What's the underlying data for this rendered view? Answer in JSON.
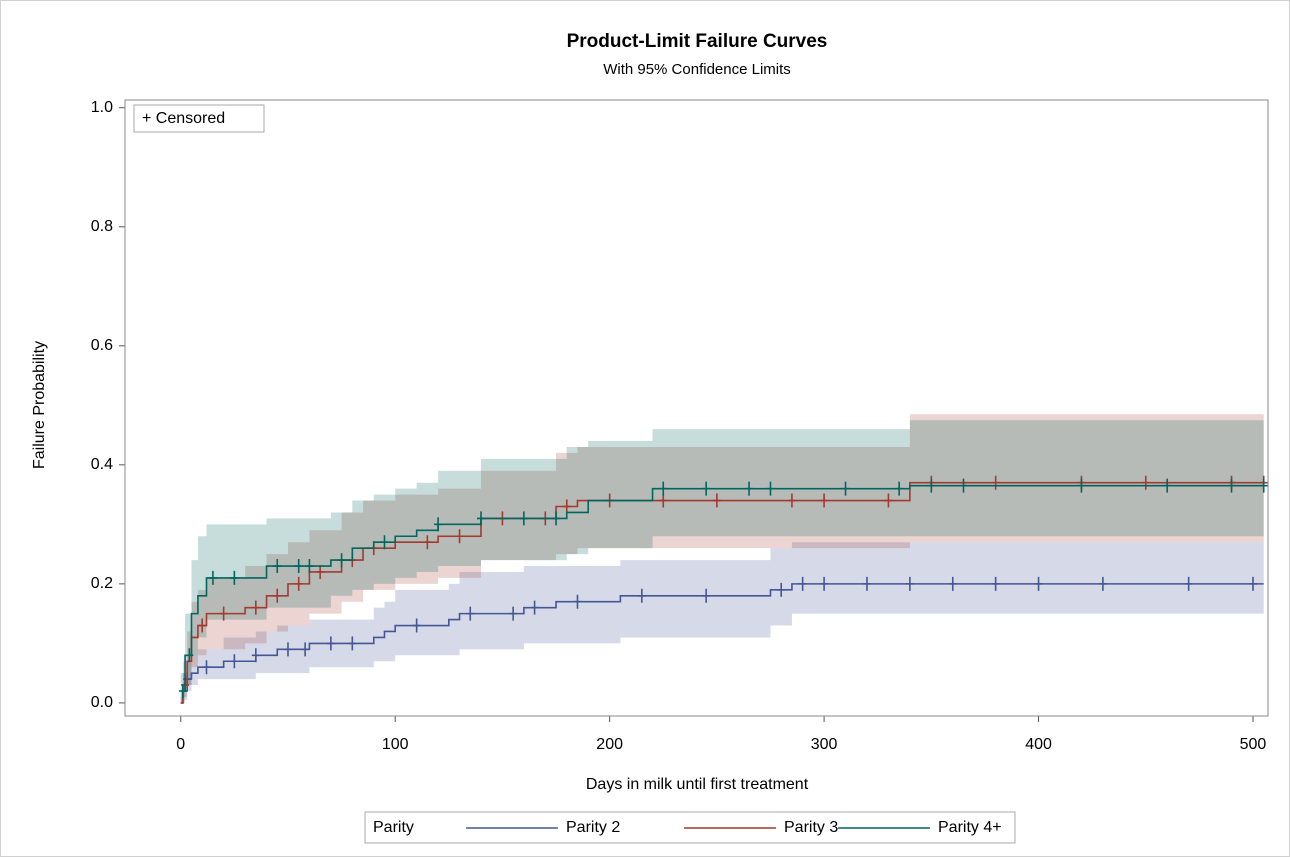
{
  "chart_data": {
    "type": "line",
    "title": "Product-Limit Failure Curves",
    "subtitle": "With 95% Confidence Limits",
    "xlabel": "Days in milk until first treatment",
    "ylabel": "Failure Probability",
    "legend_title": "Parity",
    "censored_label": "+ Censored",
    "xlim": [
      -26,
      507
    ],
    "ylim": [
      -0.022,
      1.013
    ],
    "xticks": [
      0,
      100,
      200,
      300,
      400,
      500
    ],
    "yticks": [
      {
        "value": 0,
        "label": "0.0"
      },
      0.2,
      0.4,
      0.6,
      0.8,
      {
        "value": 1,
        "label": "1.0"
      }
    ],
    "series": [
      {
        "name": "Parity 2",
        "color": "#445694",
        "x": [
          0,
          1,
          3,
          5,
          8,
          20,
          35,
          45,
          60,
          90,
          95,
          100,
          125,
          130,
          160,
          175,
          205,
          275,
          285,
          505
        ],
        "values": [
          0,
          0.02,
          0.04,
          0.05,
          0.06,
          0.07,
          0.08,
          0.09,
          0.1,
          0.11,
          0.12,
          0.13,
          0.14,
          0.15,
          0.16,
          0.17,
          0.18,
          0.19,
          0.2,
          0.2
        ],
        "lower": [
          0,
          0.005,
          0.02,
          0.03,
          0.04,
          0.04,
          0.05,
          0.05,
          0.06,
          0.07,
          0.07,
          0.08,
          0.08,
          0.09,
          0.1,
          0.1,
          0.11,
          0.13,
          0.15,
          0.15
        ],
        "upper": [
          0.01,
          0.05,
          0.07,
          0.08,
          0.09,
          0.11,
          0.12,
          0.13,
          0.14,
          0.16,
          0.17,
          0.19,
          0.2,
          0.22,
          0.23,
          0.23,
          0.24,
          0.26,
          0.27,
          0.27
        ],
        "censored_x": [
          3,
          12,
          25,
          35,
          50,
          58,
          70,
          80,
          110,
          135,
          155,
          165,
          185,
          215,
          245,
          280,
          290,
          300,
          320,
          340,
          360,
          380,
          400,
          430,
          470,
          500
        ],
        "censored_y": [
          0.04,
          0.06,
          0.07,
          0.08,
          0.09,
          0.09,
          0.1,
          0.1,
          0.13,
          0.15,
          0.15,
          0.16,
          0.17,
          0.18,
          0.18,
          0.19,
          0.2,
          0.2,
          0.2,
          0.2,
          0.2,
          0.2,
          0.2,
          0.2,
          0.2,
          0.2
        ]
      },
      {
        "name": "Parity 3",
        "color": "#A23A2E",
        "x": [
          0,
          1,
          3,
          5,
          8,
          12,
          30,
          40,
          50,
          60,
          75,
          85,
          100,
          120,
          140,
          175,
          185,
          340,
          505
        ],
        "values": [
          0,
          0.03,
          0.07,
          0.11,
          0.13,
          0.15,
          0.16,
          0.18,
          0.2,
          0.22,
          0.24,
          0.26,
          0.27,
          0.28,
          0.31,
          0.33,
          0.34,
          0.37,
          0.37
        ],
        "lower": [
          0,
          0.01,
          0.03,
          0.06,
          0.08,
          0.09,
          0.1,
          0.12,
          0.13,
          0.15,
          0.17,
          0.19,
          0.2,
          0.21,
          0.24,
          0.25,
          0.26,
          0.27,
          0.27
        ],
        "upper": [
          0.02,
          0.07,
          0.12,
          0.17,
          0.19,
          0.21,
          0.23,
          0.25,
          0.27,
          0.29,
          0.32,
          0.34,
          0.35,
          0.36,
          0.39,
          0.42,
          0.43,
          0.485,
          0.485
        ],
        "censored_x": [
          2,
          10,
          20,
          35,
          45,
          55,
          65,
          80,
          90,
          115,
          130,
          150,
          170,
          180,
          200,
          225,
          250,
          285,
          300,
          330,
          350,
          380,
          420,
          450,
          490,
          505
        ],
        "censored_y": [
          0.03,
          0.13,
          0.15,
          0.16,
          0.18,
          0.2,
          0.22,
          0.24,
          0.26,
          0.27,
          0.28,
          0.31,
          0.31,
          0.33,
          0.34,
          0.34,
          0.34,
          0.34,
          0.34,
          0.34,
          0.37,
          0.37,
          0.37,
          0.37,
          0.37,
          0.37
        ]
      },
      {
        "name": "Parity 4+",
        "color": "#01665E",
        "x": [
          0,
          2,
          5,
          8,
          12,
          40,
          70,
          80,
          90,
          100,
          110,
          120,
          140,
          180,
          190,
          220,
          340,
          505
        ],
        "values": [
          0.02,
          0.08,
          0.15,
          0.18,
          0.21,
          0.23,
          0.24,
          0.26,
          0.27,
          0.28,
          0.29,
          0.3,
          0.31,
          0.32,
          0.34,
          0.36,
          0.365,
          0.365
        ],
        "lower": [
          0,
          0.03,
          0.08,
          0.11,
          0.14,
          0.16,
          0.18,
          0.19,
          0.2,
          0.21,
          0.22,
          0.23,
          0.24,
          0.25,
          0.26,
          0.28,
          0.28,
          0.28
        ],
        "upper": [
          0.05,
          0.15,
          0.24,
          0.28,
          0.3,
          0.31,
          0.32,
          0.34,
          0.35,
          0.36,
          0.37,
          0.39,
          0.41,
          0.43,
          0.44,
          0.46,
          0.475,
          0.475
        ],
        "censored_x": [
          1,
          4,
          15,
          25,
          45,
          55,
          60,
          75,
          95,
          120,
          140,
          160,
          175,
          225,
          245,
          265,
          275,
          310,
          335,
          350,
          365,
          420,
          460,
          490,
          505
        ],
        "censored_y": [
          0.02,
          0.08,
          0.21,
          0.21,
          0.23,
          0.23,
          0.23,
          0.24,
          0.27,
          0.3,
          0.31,
          0.31,
          0.31,
          0.36,
          0.36,
          0.36,
          0.36,
          0.36,
          0.36,
          0.365,
          0.365,
          0.365,
          0.365,
          0.365,
          0.365
        ]
      }
    ]
  }
}
